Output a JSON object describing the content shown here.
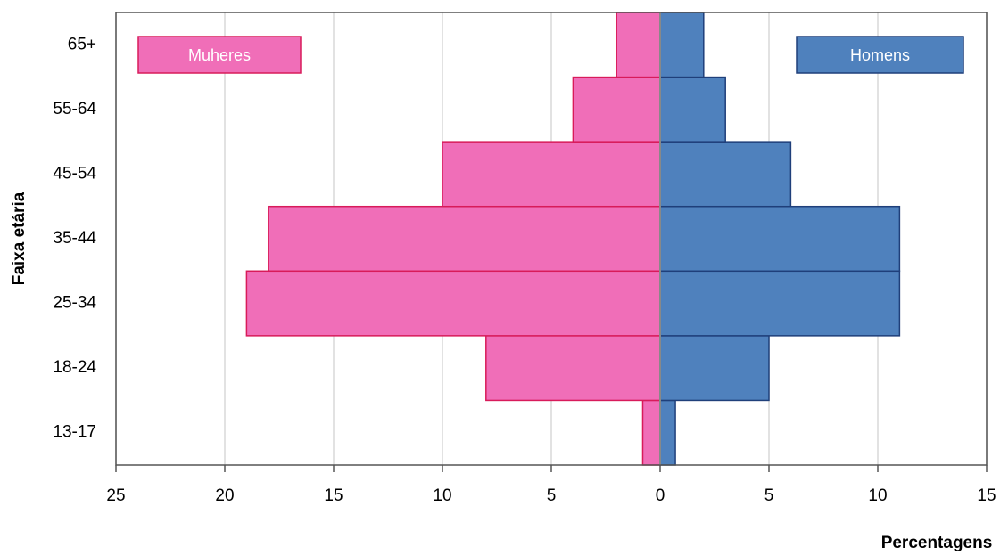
{
  "chart_data": {
    "type": "pyramid",
    "xlabel": "Percentagens",
    "ylabel": "Faixa etária",
    "categories": [
      "13-17",
      "18-24",
      "25-34",
      "35-44",
      "45-54",
      "55-64",
      "65+"
    ],
    "series": [
      {
        "name": "Muheres",
        "color": "#f06eb8",
        "edge": "#d81b5a",
        "values": [
          -0.8,
          -8,
          -19,
          -18,
          -10,
          -4,
          -2
        ]
      },
      {
        "name": "Homens",
        "color": "#4f81bd",
        "edge": "#1f3f7a",
        "values": [
          0.7,
          5,
          11,
          11,
          6,
          3,
          2
        ]
      }
    ],
    "xlim": [
      -25,
      15
    ],
    "xticks": [
      {
        "value": -25,
        "label": "25"
      },
      {
        "value": -20,
        "label": "20"
      },
      {
        "value": -15,
        "label": "15"
      },
      {
        "value": -10,
        "label": "10"
      },
      {
        "value": -5,
        "label": "5"
      },
      0,
      5,
      10,
      15
    ],
    "grid": true
  }
}
